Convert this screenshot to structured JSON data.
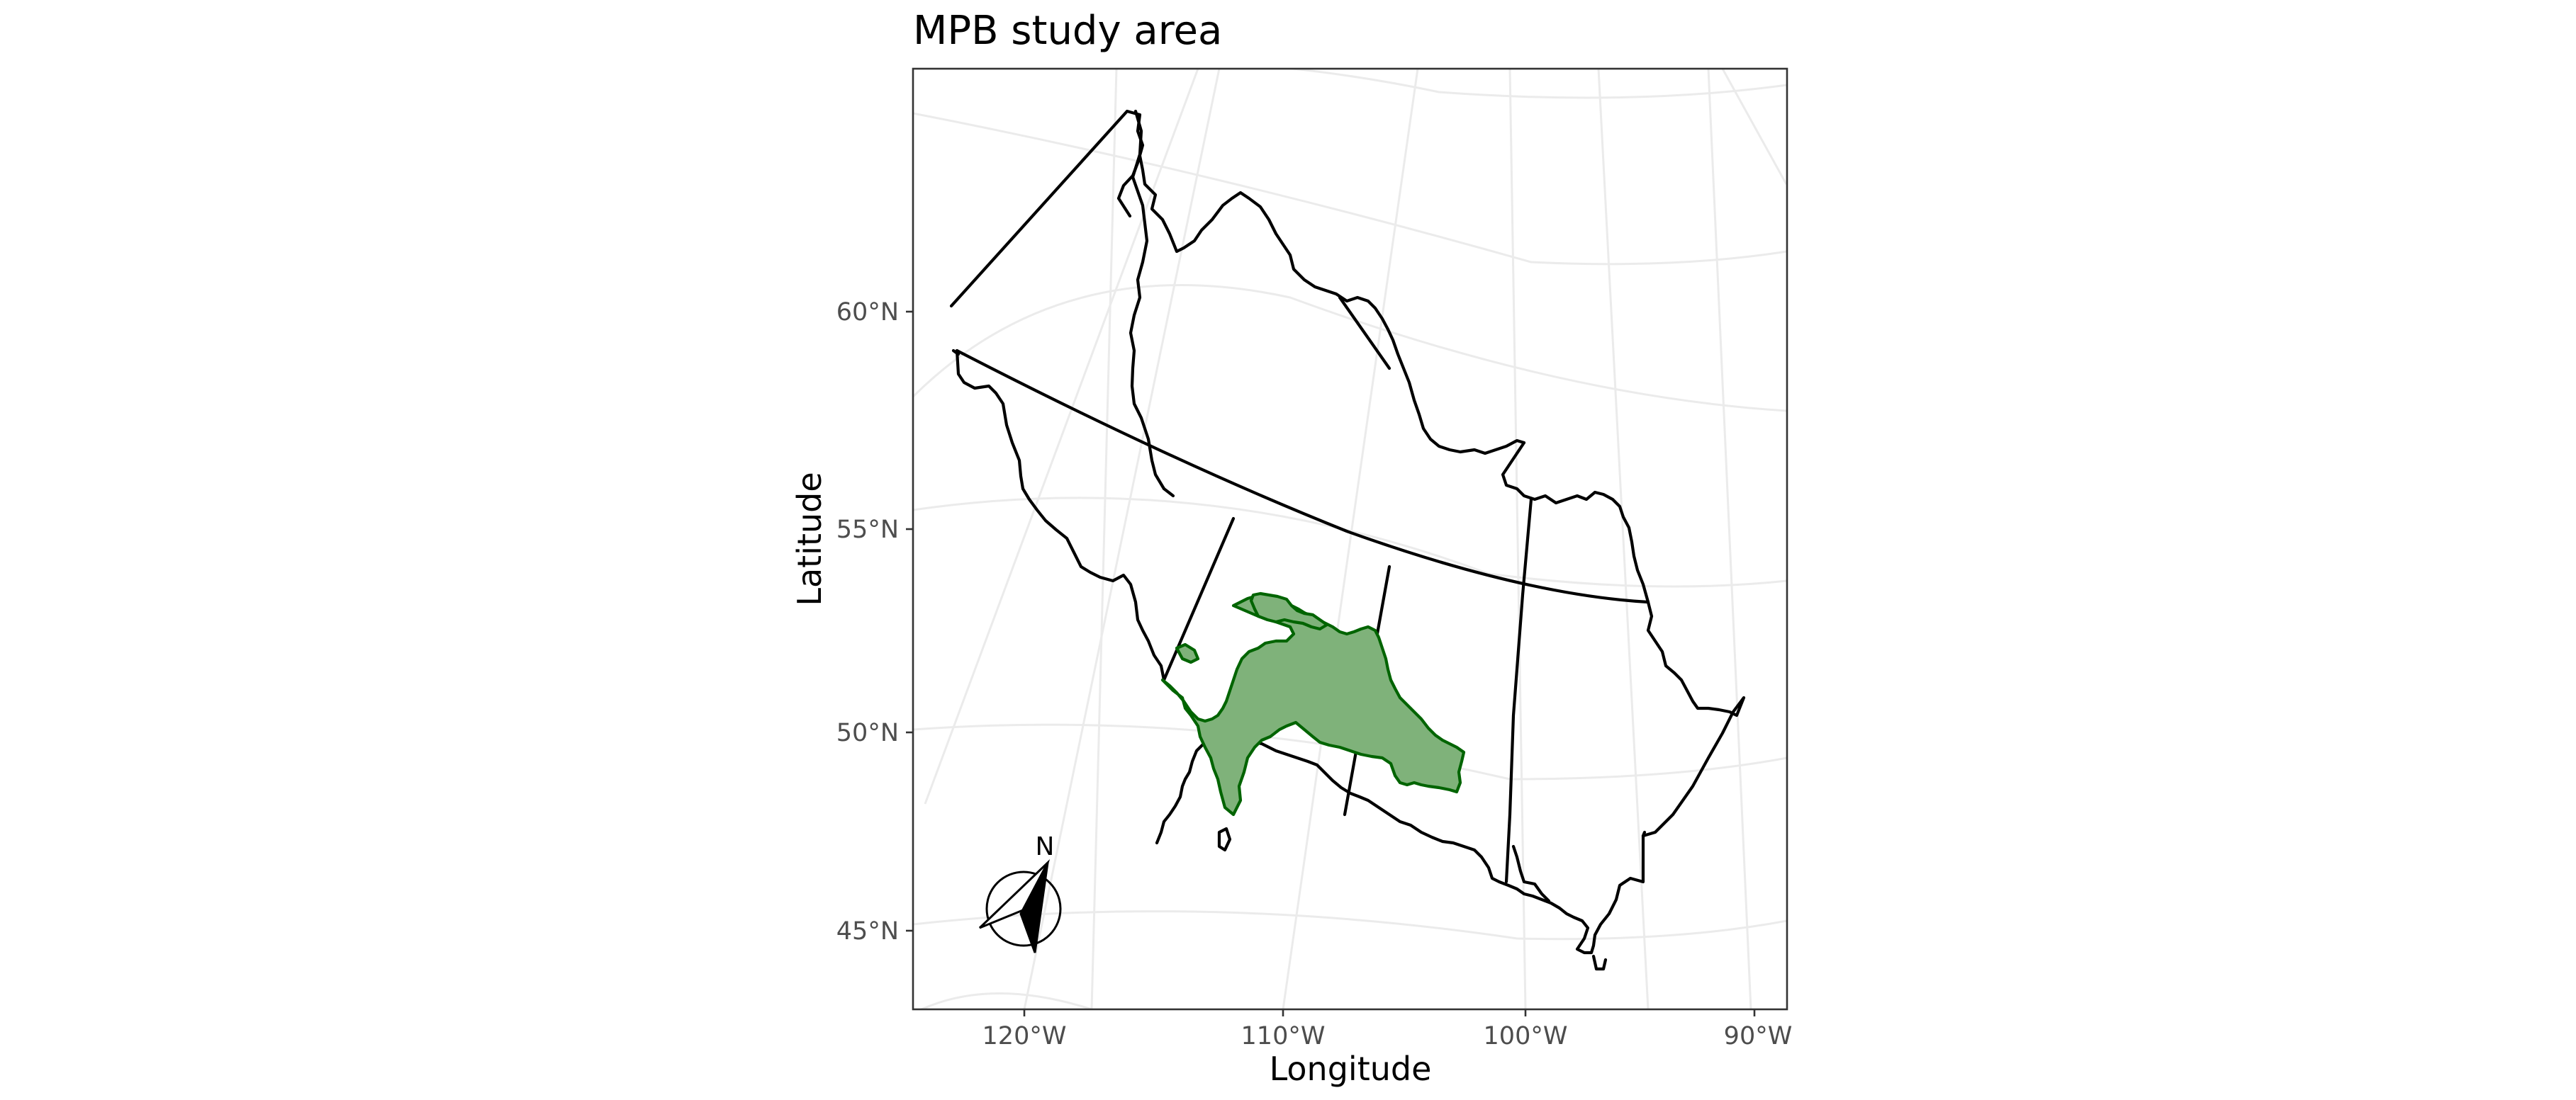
{
  "map": {
    "title": "MPB study area",
    "x_axis_title": "Longitude",
    "y_axis_title": "Latitude",
    "x_ticks": [
      "120°W",
      "110°W",
      "100°W",
      "90°W"
    ],
    "y_ticks": [
      "60°N",
      "55°N",
      "50°N",
      "45°N"
    ],
    "north_arrow_label": "N",
    "colors": {
      "study_area_fill": "#7fb27a",
      "study_area_border": "#006400",
      "borders": "#000000",
      "graticule": "#ebebeb"
    }
  }
}
